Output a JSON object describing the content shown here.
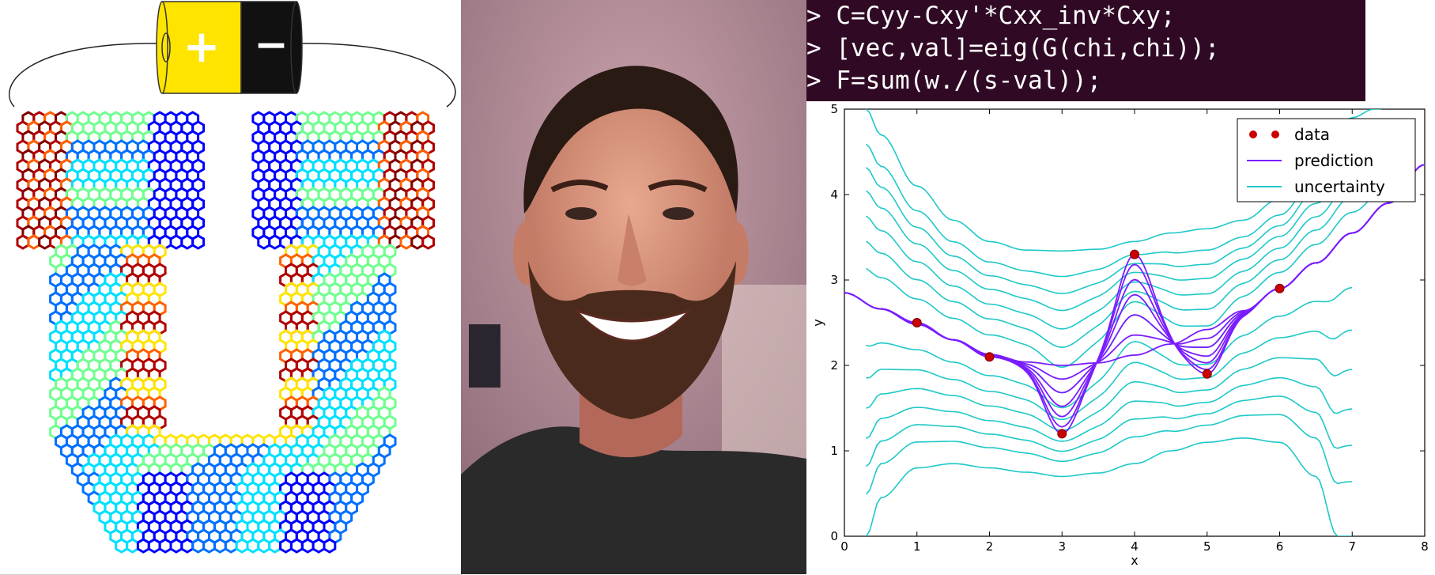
{
  "battery": {
    "positive_symbol": "+",
    "negative_symbol": "−",
    "positive_color": "#ffe400",
    "negative_color": "#111111"
  },
  "graphene": {
    "colormap": "jet",
    "colors": [
      "#00008f",
      "#0000ff",
      "#0070ff",
      "#00e0ff",
      "#70ff8f",
      "#ffe400",
      "#ff6000",
      "#b00000",
      "#800000"
    ]
  },
  "portrait": {
    "subject": "smiling bearded man",
    "background_color": "#b08a96",
    "shirt_color": "#2a2a2a"
  },
  "code": {
    "background": "#300a24",
    "lines": [
      {
        "prompt": ">",
        "text": " C=Cyy-Cxy'*Cxx_inv*Cxy;"
      },
      {
        "prompt": ">",
        "text": " [vec,val]=eig(G(chi,chi));"
      },
      {
        "prompt": ">",
        "text": " F=sum(w./(s-val));"
      }
    ]
  },
  "chart_data": {
    "type": "line",
    "xlabel": "x",
    "ylabel": "y",
    "xlim": [
      0,
      8
    ],
    "ylim": [
      0,
      5
    ],
    "xticks": [
      "0",
      "1",
      "2",
      "3",
      "4",
      "5",
      "6",
      "7",
      "8"
    ],
    "yticks": [
      "0",
      "1",
      "2",
      "3",
      "4",
      "5"
    ],
    "legend_position": "top-right",
    "legend": [
      {
        "label": "data",
        "color": "#cc0000",
        "style": "points"
      },
      {
        "label": "prediction",
        "color": "#7a1cff",
        "style": "line"
      },
      {
        "label": "uncertainty",
        "color": "#1fc8c8",
        "style": "line"
      }
    ],
    "data_points": {
      "x": [
        1,
        2,
        3,
        4,
        5,
        6
      ],
      "y": [
        2.5,
        2.1,
        1.2,
        3.3,
        1.9,
        2.9
      ]
    },
    "prediction_base": {
      "x": [
        0,
        0.5,
        1,
        1.5,
        2,
        2.5,
        3,
        3.5,
        4,
        4.5,
        5,
        5.5,
        6,
        6.5,
        7,
        7.5,
        8
      ],
      "y": [
        2.85,
        2.66,
        2.48,
        2.3,
        2.13,
        2.04,
        2.0,
        2.03,
        2.12,
        2.25,
        2.42,
        2.64,
        2.9,
        3.2,
        3.55,
        3.9,
        4.35
      ]
    },
    "uncertainty_upper": {
      "x": [
        0.3,
        0.5,
        1,
        1.5,
        2,
        2.5,
        3,
        3.5,
        4,
        4.5,
        5,
        5.5,
        6,
        6.5,
        7,
        7.3
      ],
      "y": [
        5.0,
        4.7,
        4.1,
        3.7,
        3.45,
        3.35,
        3.34,
        3.36,
        3.45,
        3.55,
        3.6,
        3.7,
        3.95,
        4.4,
        4.9,
        5.0
      ]
    },
    "uncertainty_lower": {
      "x": [
        0.3,
        0.5,
        1,
        1.5,
        2,
        2.5,
        3,
        3.5,
        4,
        4.5,
        5,
        5.5,
        6,
        6.5,
        6.8
      ],
      "y": [
        0,
        0.45,
        0.8,
        0.85,
        0.8,
        0.75,
        0.7,
        0.74,
        0.85,
        1.0,
        1.1,
        1.15,
        1.1,
        0.7,
        0
      ]
    }
  }
}
